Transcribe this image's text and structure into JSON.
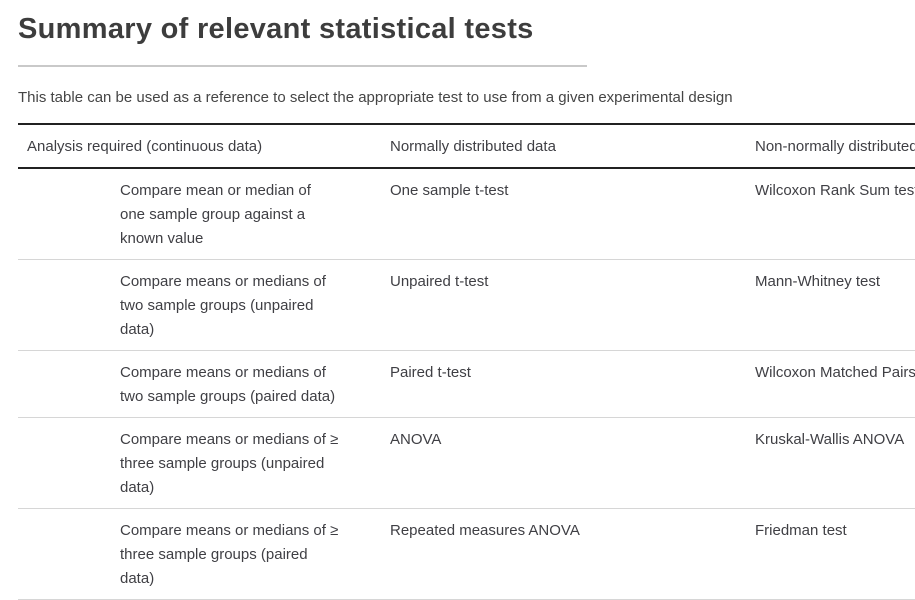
{
  "page": {
    "title": "Summary of relevant statistical tests",
    "subtitle": "This table can be used as a reference to select the appropriate test to use from a given experimental design"
  },
  "table": {
    "headers": {
      "analysis": "Analysis required (continuous data)",
      "normal": "Normally distributed data",
      "non_normal": "Non-normally distributed data"
    },
    "rows": [
      {
        "analysis": "Compare mean or median of one sample group against a known value",
        "normal": "One sample t-test",
        "non_normal": "Wilcoxon Rank Sum test"
      },
      {
        "analysis": "Compare means or medians of two sample groups (unpaired data)",
        "normal": "Unpaired t-test",
        "non_normal": "Mann-Whitney test"
      },
      {
        "analysis": "Compare means or medians of two sample groups (paired data)",
        "normal": "Paired t-test",
        "non_normal": "Wilcoxon Matched Pairs test"
      },
      {
        "analysis": "Compare means or medians of ≥ three sample groups (unpaired data)",
        "normal": "ANOVA",
        "non_normal": "Kruskal-Wallis ANOVA"
      },
      {
        "analysis": "Compare means or medians of ≥ three sample groups (paired data)",
        "normal": "Repeated measures ANOVA",
        "non_normal": "Friedman test"
      }
    ]
  },
  "colors": {
    "title_text": "#3d3d3d",
    "body_text": "#3f3f44",
    "table_border_dark": "#212121",
    "row_separator": "#d6d6d6",
    "title_divider": "#c9c9c9",
    "background": "#ffffff"
  }
}
